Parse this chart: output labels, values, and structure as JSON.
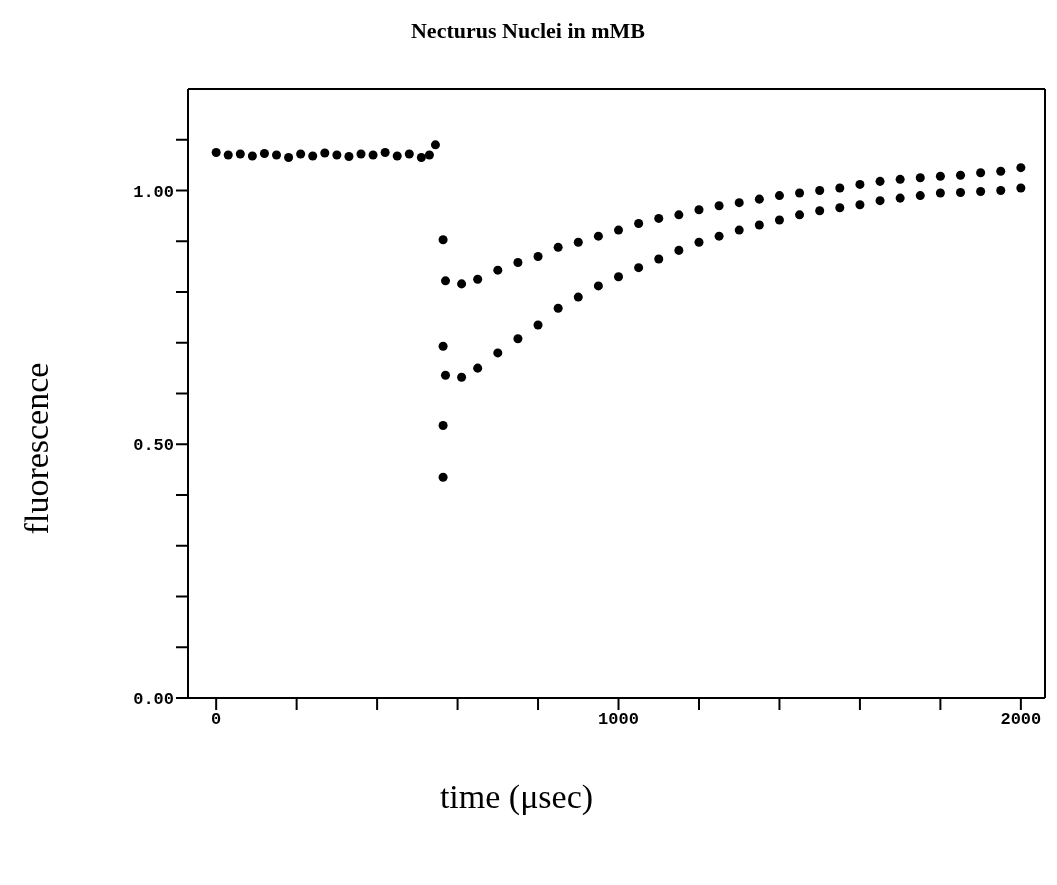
{
  "chart_data": {
    "type": "scatter",
    "title": "Necturus Nuclei in mMB",
    "xlabel": "time (μsec)",
    "ylabel": "fluorescence",
    "marker": "circle",
    "xlim": [
      -70,
      2060
    ],
    "ylim": [
      0,
      1.2
    ],
    "xticks": [
      0,
      {
        "value": 200,
        "label": null
      },
      {
        "value": 400,
        "label": null
      },
      {
        "value": 600,
        "label": null
      },
      {
        "value": 800,
        "label": null
      },
      1000,
      {
        "value": 1200,
        "label": null
      },
      {
        "value": 1400,
        "label": null
      },
      {
        "value": 1600,
        "label": null
      },
      {
        "value": 1800,
        "label": null
      },
      2000
    ],
    "yticks": [
      {
        "value": 0,
        "label": "0.00"
      },
      {
        "value": 0.1,
        "label": null
      },
      {
        "value": 0.2,
        "label": null
      },
      {
        "value": 0.3,
        "label": null
      },
      {
        "value": 0.4,
        "label": null
      },
      {
        "value": 0.5,
        "label": "0.50"
      },
      {
        "value": 0.6,
        "label": null
      },
      {
        "value": 0.7,
        "label": null
      },
      {
        "value": 0.8,
        "label": null
      },
      {
        "value": 0.9,
        "label": null
      },
      {
        "value": 1,
        "label": "1.00"
      },
      {
        "value": 1.1,
        "label": null
      }
    ],
    "series": [
      {
        "color": "#000000",
        "x": [
          0,
          30,
          60,
          90,
          120,
          150,
          180,
          210,
          240,
          270,
          300,
          330,
          360,
          390,
          420,
          450,
          480,
          510,
          530,
          545
        ],
        "values": [
          1.075,
          1.07,
          1.072,
          1.068,
          1.073,
          1.07,
          1.065,
          1.072,
          1.068,
          1.074,
          1.07,
          1.067,
          1.072,
          1.07,
          1.075,
          1.068,
          1.072,
          1.065,
          1.07,
          1.09
        ]
      },
      {
        "color": "#000000",
        "x": [
          564,
          564,
          564,
          564
        ],
        "values": [
          0.903,
          0.693,
          0.537,
          0.435
        ]
      },
      {
        "color": "#000000",
        "x": [
          570,
          610,
          650,
          700,
          750,
          800,
          850,
          900,
          950,
          1000,
          1050,
          1100,
          1150,
          1200,
          1250,
          1300,
          1350,
          1400,
          1450,
          1500,
          1550,
          1600,
          1650,
          1700,
          1750,
          1800,
          1850,
          1900,
          1950,
          2000
        ],
        "values": [
          0.822,
          0.816,
          0.825,
          0.843,
          0.858,
          0.87,
          0.888,
          0.898,
          0.91,
          0.922,
          0.935,
          0.945,
          0.952,
          0.962,
          0.97,
          0.976,
          0.983,
          0.99,
          0.995,
          1.0,
          1.005,
          1.012,
          1.018,
          1.022,
          1.025,
          1.028,
          1.03,
          1.035,
          1.038,
          1.045
        ]
      },
      {
        "color": "#000000",
        "x": [
          570,
          610,
          650,
          700,
          750,
          800,
          850,
          900,
          950,
          1000,
          1050,
          1100,
          1150,
          1200,
          1250,
          1300,
          1350,
          1400,
          1450,
          1500,
          1550,
          1600,
          1650,
          1700,
          1750,
          1800,
          1850,
          1900,
          1950,
          2000
        ],
        "values": [
          0.636,
          0.632,
          0.65,
          0.68,
          0.708,
          0.735,
          0.768,
          0.79,
          0.812,
          0.83,
          0.848,
          0.865,
          0.882,
          0.898,
          0.91,
          0.922,
          0.932,
          0.942,
          0.952,
          0.96,
          0.966,
          0.972,
          0.98,
          0.985,
          0.99,
          0.995,
          0.996,
          0.998,
          1.0,
          1.005
        ]
      }
    ]
  }
}
